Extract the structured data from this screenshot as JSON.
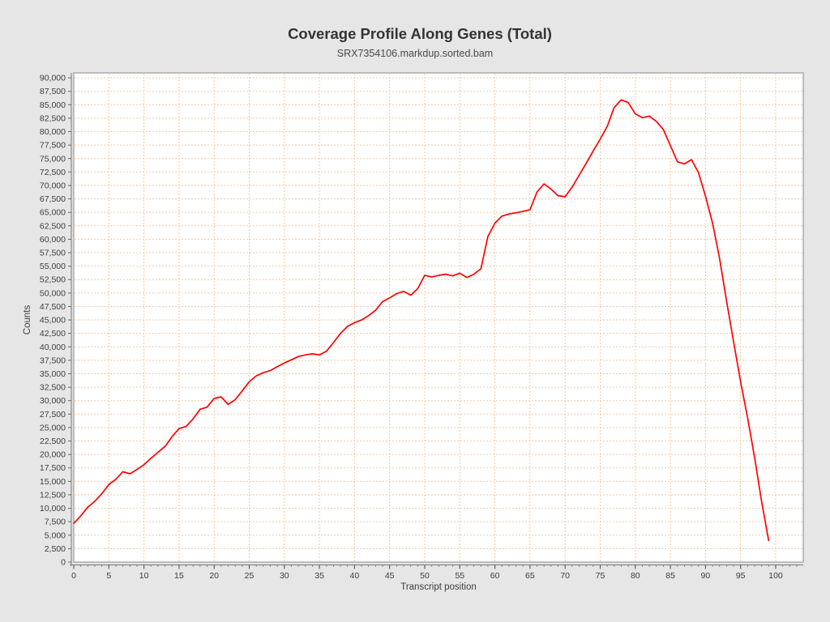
{
  "header": {
    "title": "Coverage Profile Along Genes (Total)",
    "subtitle": "SRX7354106.markdup.sorted.bam"
  },
  "chart_data": {
    "type": "line",
    "title": "Coverage Profile Along Genes (Total)",
    "subtitle": "SRX7354106.markdup.sorted.bam",
    "xlabel": "Transcript position",
    "ylabel": "Counts",
    "xlim": [
      0,
      100
    ],
    "ylim": [
      0,
      90000
    ],
    "x_tick_interval": 5,
    "y_tick_interval": 2500,
    "grid": true,
    "legend": "none",
    "line_color": "#ff0000",
    "grid_color": "#f5c9a2",
    "plot_bg": "#ffffff",
    "page_bg": "#e6e6e6",
    "x_ticks": [
      0,
      5,
      10,
      15,
      20,
      25,
      30,
      35,
      40,
      45,
      50,
      55,
      60,
      65,
      70,
      75,
      80,
      85,
      90,
      95,
      100
    ],
    "y_ticks": [
      "0",
      "2,500",
      "5,000",
      "7,500",
      "10,000",
      "12,500",
      "15,000",
      "17,500",
      "20,000",
      "22,500",
      "25,000",
      "27,500",
      "30,000",
      "32,500",
      "35,000",
      "37,500",
      "40,000",
      "42,500",
      "45,000",
      "47,500",
      "50,000",
      "52,500",
      "55,000",
      "57,500",
      "60,000",
      "62,500",
      "65,000",
      "67,500",
      "70,000",
      "72,500",
      "75,000",
      "77,500",
      "80,000",
      "82,500",
      "85,000",
      "87,500",
      "90,000"
    ],
    "x": [
      0,
      1,
      2,
      3,
      4,
      5,
      6,
      7,
      8,
      9,
      10,
      11,
      12,
      13,
      14,
      15,
      16,
      17,
      18,
      19,
      20,
      21,
      22,
      23,
      24,
      25,
      26,
      27,
      28,
      29,
      30,
      31,
      32,
      33,
      34,
      35,
      36,
      37,
      38,
      39,
      40,
      41,
      42,
      43,
      44,
      45,
      46,
      47,
      48,
      49,
      50,
      51,
      52,
      53,
      54,
      55,
      56,
      57,
      58,
      59,
      60,
      61,
      62,
      63,
      64,
      65,
      66,
      67,
      68,
      69,
      70,
      71,
      72,
      73,
      74,
      75,
      76,
      77,
      78,
      79,
      80,
      81,
      82,
      83,
      84,
      85,
      86,
      87,
      88,
      89,
      90,
      91,
      92,
      93,
      94,
      95,
      96,
      97,
      98,
      99
    ],
    "values": [
      7200,
      8600,
      10200,
      11300,
      12700,
      14400,
      15400,
      16800,
      16400,
      17200,
      18100,
      19300,
      20400,
      21500,
      23300,
      24800,
      25200,
      26600,
      28400,
      28800,
      30400,
      30700,
      29300,
      30200,
      31800,
      33500,
      34600,
      35200,
      35600,
      36300,
      37000,
      37600,
      38200,
      38500,
      38700,
      38500,
      39200,
      40800,
      42500,
      43800,
      44500,
      45000,
      45800,
      46800,
      48400,
      49100,
      49900,
      50300,
      49600,
      50800,
      53300,
      53000,
      53300,
      53500,
      53200,
      53700,
      52900,
      53500,
      54500,
      60500,
      63000,
      64300,
      64700,
      64900,
      65200,
      65500,
      68800,
      70300,
      69300,
      68100,
      67900,
      69700,
      71900,
      74100,
      76400,
      78600,
      81000,
      84500,
      85900,
      85400,
      83300,
      82600,
      82900,
      81900,
      80400,
      77400,
      74400,
      74000,
      74800,
      72400,
      68000,
      63000,
      56500,
      48500,
      41000,
      33500,
      26800,
      19400,
      11200,
      4000
    ]
  }
}
